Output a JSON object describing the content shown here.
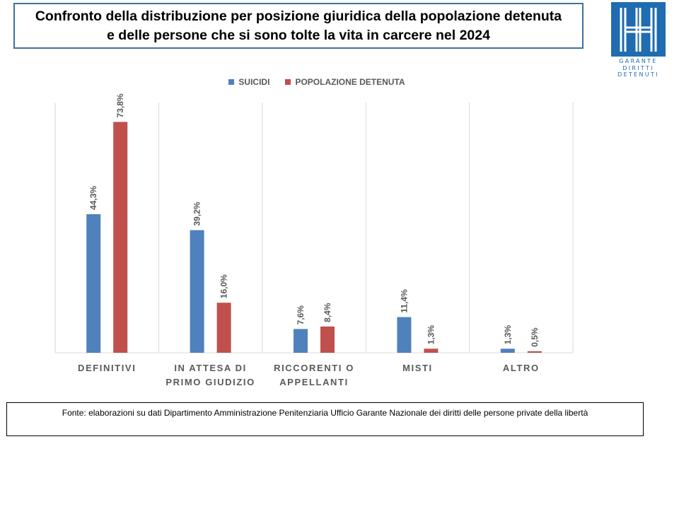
{
  "title": "Confronto della distribuzione per posizione giuridica della popolazione detenuta e delle persone che si sono tolte la vita in carcere nel 2024",
  "logo": {
    "lines": [
      "GARANTE",
      "DIRITTI",
      "DETENUTI"
    ]
  },
  "source": "Fonte: elaborazioni su dati Dipartimento Amministrazione Penitenziaria Ufficio Garante Nazionale dei diritti delle persone private della libertà",
  "colors": {
    "suicidi": "#4f81bd",
    "popolazione": "#c0504d",
    "logo": "#1f6cb0",
    "gridline": "#d9d9d9",
    "label_text": "#595959"
  },
  "chart_data": {
    "type": "bar",
    "categories": [
      [
        "DEFINITIVI"
      ],
      [
        "IN ATTESA DI",
        "PRIMO GIUDIZIO"
      ],
      [
        "RICCORENTI O",
        "APPELLANTI"
      ],
      [
        "MISTI"
      ],
      [
        "ALTRO"
      ]
    ],
    "series": [
      {
        "name": "SUICIDI",
        "values": [
          44.3,
          39.2,
          7.6,
          11.4,
          1.3
        ],
        "labels": [
          "44,3%",
          "39,2%",
          "7,6%",
          "11,4%",
          "1,3%"
        ]
      },
      {
        "name": "POPOLAZIONE DETENUTA",
        "values": [
          73.8,
          16.0,
          8.4,
          1.3,
          0.5
        ],
        "labels": [
          "73,8%",
          "16,0%",
          "8,4%",
          "1,3%",
          "0,5%"
        ]
      }
    ],
    "ylim": [
      0,
      80
    ],
    "legend_position": "top-center",
    "grid": "vertical"
  }
}
